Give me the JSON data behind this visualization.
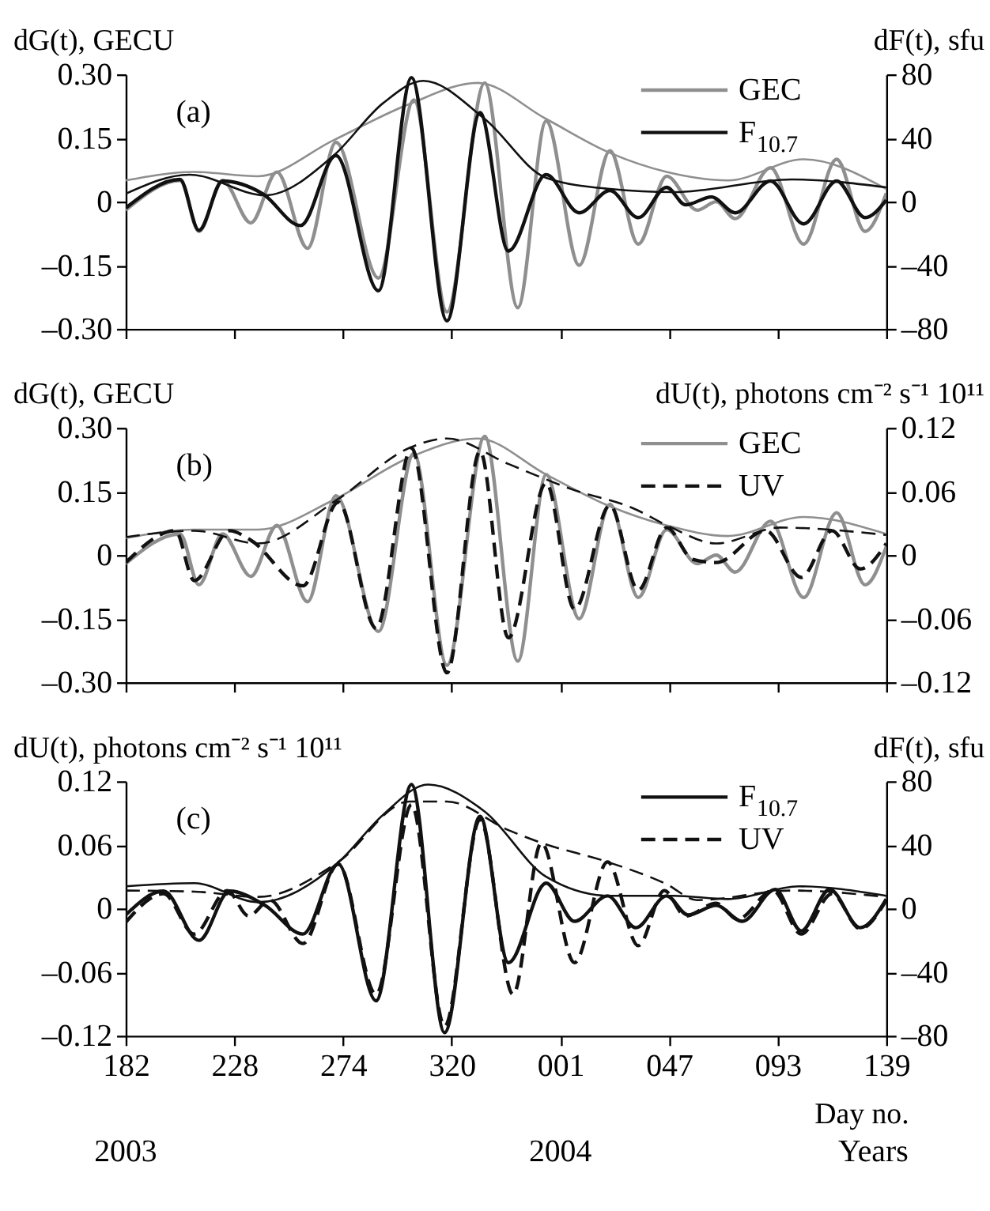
{
  "chart_data": [
    {
      "type": "line",
      "ylabel": "dG(t), GECU",
      "y2label": "dF(t), sfu",
      "annotations": [
        "(a)"
      ],
      "legend": "top right",
      "tick_labels": "y",
      "xlim": [
        "2003-07-01",
        "2004-05-18"
      ],
      "xticks": [
        {
          "value": "2003-07-01",
          "label": null
        },
        {
          "value": "2003-08-16",
          "label": null
        },
        {
          "value": "2003-10-01",
          "label": null
        },
        {
          "value": "2003-11-16",
          "label": null
        },
        {
          "value": "2004-01-01",
          "label": null
        },
        {
          "value": "2004-02-16",
          "label": null
        },
        {
          "value": "2004-04-02",
          "label": null
        },
        {
          "value": "2004-05-18",
          "label": null
        }
      ],
      "ylim": [
        -0.3,
        0.3
      ],
      "yticks": [
        {
          "value": -0.3,
          "label": "–0.30"
        },
        {
          "value": -0.15,
          "label": "–0.15"
        },
        0,
        {
          "value": 0.15,
          "label": "0.15"
        },
        {
          "value": 0.3,
          "label": "0.30"
        }
      ],
      "y2lim": [
        -80,
        80
      ],
      "y2ticks": [
        {
          "value": -80,
          "label": "–80"
        },
        {
          "value": -40,
          "label": "–40"
        },
        0,
        40,
        80
      ],
      "series": [
        {
          "name": "GEC",
          "color": "#8f8f8f",
          "x": [
            "2003-07-01",
            "2003-07-24",
            "2003-08-01",
            "2003-08-11",
            "2003-08-23",
            "2003-09-03",
            "2003-09-16",
            "2003-09-28",
            "2003-10-16",
            "2003-10-31",
            "2003-11-14",
            "2003-11-30",
            "2003-12-14",
            "2003-12-26",
            "2004-01-09",
            "2004-01-22",
            "2004-02-03",
            "2004-02-15",
            "2004-02-28",
            "2004-03-07",
            "2004-03-15",
            "2004-03-30",
            "2004-04-13",
            "2004-04-27",
            "2004-05-09",
            "2004-05-18"
          ],
          "values": [
            -0.02,
            0.05,
            -0.07,
            0.05,
            -0.05,
            0.07,
            -0.11,
            0.14,
            -0.18,
            0.24,
            -0.26,
            0.28,
            -0.25,
            0.19,
            -0.15,
            0.12,
            -0.1,
            0.06,
            -0.02,
            0.0,
            -0.04,
            0.08,
            -0.1,
            0.1,
            -0.07,
            0.02
          ]
        },
        {
          "name": "F$_{10.7}$",
          "color": "#111111",
          "axis": "y2",
          "x": [
            "2003-07-01",
            "2003-07-24",
            "2003-08-01",
            "2003-08-11",
            "2003-08-28",
            "2003-09-13",
            "2003-09-28",
            "2003-10-16",
            "2003-10-30",
            "2003-11-14",
            "2003-11-28",
            "2003-12-10",
            "2003-12-26",
            "2004-01-09",
            "2004-01-22",
            "2004-02-03",
            "2004-02-15",
            "2004-02-23",
            "2004-03-05",
            "2004-03-15",
            "2004-03-30",
            "2004-04-13",
            "2004-04-27",
            "2004-05-09",
            "2004-05-18"
          ],
          "values": [
            -4,
            14,
            -18,
            13,
            5,
            -15,
            29,
            -56,
            78,
            -75,
            56,
            -31,
            17,
            -7,
            7,
            -10,
            9,
            -2,
            3,
            -7,
            13,
            -14,
            13,
            -10,
            1
          ]
        },
        {
          "color": "#8f8f8f",
          "x": [
            "2003-07-01",
            "2003-07-30",
            "2003-08-26",
            "2003-09-27",
            "2003-10-29",
            "2003-11-27",
            "2003-12-26",
            "2004-01-22",
            "2004-02-15",
            "2004-03-12",
            "2004-04-13",
            "2004-05-18"
          ],
          "values": [
            0.05,
            0.07,
            0.06,
            0.145,
            0.23,
            0.28,
            0.195,
            0.115,
            0.07,
            0.05,
            0.1,
            0.03
          ]
        },
        {
          "color": "#111111",
          "axis": "y2",
          "x": [
            "2003-07-01",
            "2003-07-28",
            "2003-08-29",
            "2003-09-27",
            "2003-10-18",
            "2003-11-04",
            "2003-11-30",
            "2003-12-26",
            "2004-01-22",
            "2004-02-18",
            "2004-04-08",
            "2004-05-18"
          ],
          "values": [
            5,
            17,
            4,
            29,
            62,
            76,
            52,
            15,
            8,
            6,
            14,
            9
          ]
        }
      ]
    },
    {
      "type": "line",
      "ylabel": "dG(t), GECU",
      "y2label": "dU(t), photons cm⁻² s⁻¹ 10¹¹",
      "annotations": [
        "(b)"
      ],
      "legend": "top right",
      "tick_labels": "y",
      "xlim": [
        "2003-07-01",
        "2004-05-18"
      ],
      "xticks": [
        {
          "value": "2003-07-01",
          "label": null
        },
        {
          "value": "2003-08-16",
          "label": null
        },
        {
          "value": "2003-10-01",
          "label": null
        },
        {
          "value": "2003-11-16",
          "label": null
        },
        {
          "value": "2004-01-01",
          "label": null
        },
        {
          "value": "2004-02-16",
          "label": null
        },
        {
          "value": "2004-04-02",
          "label": null
        },
        {
          "value": "2004-05-18",
          "label": null
        }
      ],
      "ylim": [
        -0.3,
        0.3
      ],
      "yticks": [
        {
          "value": -0.3,
          "label": "–0.30"
        },
        {
          "value": -0.15,
          "label": "–0.15"
        },
        0,
        {
          "value": 0.15,
          "label": "0.15"
        },
        {
          "value": 0.3,
          "label": "0.30"
        }
      ],
      "y2lim": [
        -0.12,
        0.12
      ],
      "y2ticks": [
        {
          "value": -0.12,
          "label": "–0.12"
        },
        {
          "value": -0.06,
          "label": "–0.06"
        },
        0,
        0.06,
        0.12
      ],
      "series": [
        {
          "name": "GEC",
          "color": "#8f8f8f",
          "x": [
            "2003-07-01",
            "2003-07-24",
            "2003-08-01",
            "2003-08-11",
            "2003-08-23",
            "2003-09-03",
            "2003-09-16",
            "2003-09-28",
            "2003-10-16",
            "2003-10-31",
            "2003-11-14",
            "2003-11-30",
            "2003-12-14",
            "2003-12-26",
            "2004-01-09",
            "2004-01-22",
            "2004-02-03",
            "2004-02-15",
            "2004-02-28",
            "2004-03-07",
            "2004-03-15",
            "2004-03-30",
            "2004-04-13",
            "2004-04-27",
            "2004-05-09",
            "2004-05-18"
          ],
          "values": [
            -0.02,
            0.05,
            -0.07,
            0.05,
            -0.05,
            0.07,
            -0.11,
            0.14,
            -0.18,
            0.24,
            -0.26,
            0.28,
            -0.25,
            0.19,
            -0.15,
            0.12,
            -0.1,
            0.06,
            -0.02,
            0.0,
            -0.04,
            0.08,
            -0.1,
            0.1,
            -0.07,
            0.02
          ]
        },
        {
          "name": "UV",
          "color": "#111111",
          "axis": "y2",
          "line_style": "dashed",
          "x": [
            "2003-07-01",
            "2003-07-22",
            "2003-07-30",
            "2003-08-14",
            "2003-08-23",
            "2003-09-14",
            "2003-09-29",
            "2003-10-15",
            "2003-10-30",
            "2003-11-14",
            "2003-11-28",
            "2003-12-10",
            "2003-12-26",
            "2004-01-07",
            "2004-01-22",
            "2004-02-03",
            "2004-02-15",
            "2004-02-26",
            "2004-03-07",
            "2004-03-28",
            "2004-04-12",
            "2004-04-25",
            "2004-05-07",
            "2004-05-18"
          ],
          "values": [
            -0.007,
            0.023,
            -0.024,
            0.023,
            0.014,
            -0.029,
            0.05,
            -0.069,
            0.101,
            -0.111,
            0.098,
            -0.078,
            0.068,
            -0.051,
            0.047,
            -0.033,
            0.026,
            -0.004,
            -0.007,
            0.023,
            -0.021,
            0.023,
            -0.013,
            0.011
          ]
        },
        {
          "color": "#8f8f8f",
          "x": [
            "2003-07-01",
            "2003-07-30",
            "2003-08-26",
            "2003-09-27",
            "2003-10-29",
            "2003-11-27",
            "2003-12-26",
            "2004-01-22",
            "2004-02-15",
            "2004-03-12",
            "2004-04-13",
            "2004-05-18"
          ],
          "values": [
            0.04,
            0.06,
            0.06,
            0.13,
            0.23,
            0.275,
            0.19,
            0.115,
            0.07,
            0.045,
            0.09,
            0.05
          ]
        },
        {
          "color": "#111111",
          "axis": "y2",
          "line_style": "dashed",
          "x": [
            "2003-07-01",
            "2003-07-30",
            "2003-08-26",
            "2003-09-29",
            "2003-10-29",
            "2003-11-14",
            "2003-12-10",
            "2004-01-06",
            "2004-02-01",
            "2004-02-17",
            "2004-03-07",
            "2004-04-03",
            "2004-05-18"
          ],
          "values": [
            0.017,
            0.023,
            0.011,
            0.053,
            0.101,
            0.11,
            0.086,
            0.062,
            0.044,
            0.026,
            0.011,
            0.026,
            0.019
          ]
        }
      ]
    },
    {
      "type": "line",
      "ylabel": "dU(t), photons cm⁻² s⁻¹ 10¹¹",
      "y2label": "dF(t),  sfu",
      "xlabel": "Day no.",
      "annotations": [
        "(c)",
        "2003",
        "2004",
        "Years"
      ],
      "legend": "top right",
      "xlim": [
        "2003-07-01",
        "2004-05-18"
      ],
      "xticks": [
        {
          "value": "2003-07-01",
          "label": "182"
        },
        {
          "value": "2003-08-16",
          "label": "228"
        },
        {
          "value": "2003-10-01",
          "label": "274"
        },
        {
          "value": "2003-11-16",
          "label": "320"
        },
        {
          "value": "2004-01-01",
          "label": "001"
        },
        {
          "value": "2004-02-16",
          "label": "047"
        },
        {
          "value": "2004-04-02",
          "label": "093"
        },
        {
          "value": "2004-05-18",
          "label": "139"
        }
      ],
      "ylim": [
        -0.12,
        0.12
      ],
      "yticks": [
        {
          "value": -0.12,
          "label": "–0.12"
        },
        {
          "value": -0.06,
          "label": "–0.06"
        },
        0,
        0.06,
        0.12
      ],
      "y2lim": [
        -80,
        80
      ],
      "y2ticks": [
        {
          "value": -80,
          "label": "–80"
        },
        {
          "value": -40,
          "label": "–40"
        },
        0,
        40,
        80
      ],
      "series": [
        {
          "name": "F$_{10.7}$",
          "color": "#111111",
          "axis": "y2",
          "x": [
            "2003-07-01",
            "2003-07-17",
            "2003-08-01",
            "2003-08-14",
            "2003-08-29",
            "2003-09-14",
            "2003-09-29",
            "2003-10-15",
            "2003-10-30",
            "2003-11-13",
            "2003-11-28",
            "2003-12-10",
            "2003-12-26",
            "2004-01-07",
            "2004-01-21",
            "2004-02-02",
            "2004-02-15",
            "2004-02-24",
            "2004-03-07",
            "2004-03-18",
            "2004-04-01",
            "2004-04-12",
            "2004-04-24",
            "2004-05-07",
            "2004-05-18"
          ],
          "values": [
            -4,
            11,
            -20,
            11,
            2,
            -16,
            28,
            -58,
            78,
            -78,
            58,
            -34,
            16,
            -8,
            8,
            -12,
            8,
            -4,
            2,
            -8,
            12,
            -14,
            12,
            -12,
            6
          ]
        },
        {
          "name": "UV",
          "color": "#111111",
          "line_style": "dashed",
          "x": [
            "2003-07-01",
            "2003-07-17",
            "2003-07-30",
            "2003-08-13",
            "2003-08-22",
            "2003-08-31",
            "2003-09-14",
            "2003-09-29",
            "2003-10-15",
            "2003-10-30",
            "2003-11-13",
            "2003-11-28",
            "2003-12-12",
            "2003-12-24",
            "2004-01-07",
            "2004-01-21",
            "2004-02-03",
            "2004-02-14",
            "2004-02-23",
            "2004-03-07",
            "2004-03-16",
            "2004-03-31",
            "2004-04-12",
            "2004-04-25",
            "2004-05-07",
            "2004-05-18"
          ],
          "values": [
            -0.013,
            0.014,
            -0.024,
            0.017,
            -0.007,
            0.008,
            -0.033,
            0.042,
            -0.081,
            0.098,
            -0.111,
            0.084,
            -0.081,
            0.062,
            -0.051,
            0.044,
            -0.035,
            0.017,
            -0.007,
            0.005,
            -0.01,
            0.017,
            -0.024,
            0.014,
            -0.019,
            0.008
          ]
        },
        {
          "color": "#111111",
          "axis": "y2",
          "x": [
            "2003-07-01",
            "2003-07-30",
            "2003-08-26",
            "2003-09-29",
            "2003-10-18",
            "2003-11-06",
            "2003-11-30",
            "2003-12-26",
            "2004-01-22",
            "2004-02-18",
            "2004-03-12",
            "2004-04-11",
            "2004-05-18"
          ],
          "values": [
            14,
            16,
            4,
            29,
            59,
            78,
            61,
            20,
            8,
            8,
            6,
            14,
            8
          ]
        },
        {
          "color": "#111111",
          "line_style": "dashed",
          "x": [
            "2003-07-01",
            "2003-07-30",
            "2003-08-26",
            "2003-09-29",
            "2003-10-29",
            "2003-11-14",
            "2003-12-10",
            "2003-12-24",
            "2004-01-21",
            "2004-02-15",
            "2004-02-28",
            "2004-04-08",
            "2004-05-18"
          ],
          "values": [
            0.017,
            0.016,
            0.011,
            0.044,
            0.101,
            0.101,
            0.074,
            0.062,
            0.044,
            0.023,
            0.008,
            0.017,
            0.011
          ]
        }
      ]
    }
  ]
}
